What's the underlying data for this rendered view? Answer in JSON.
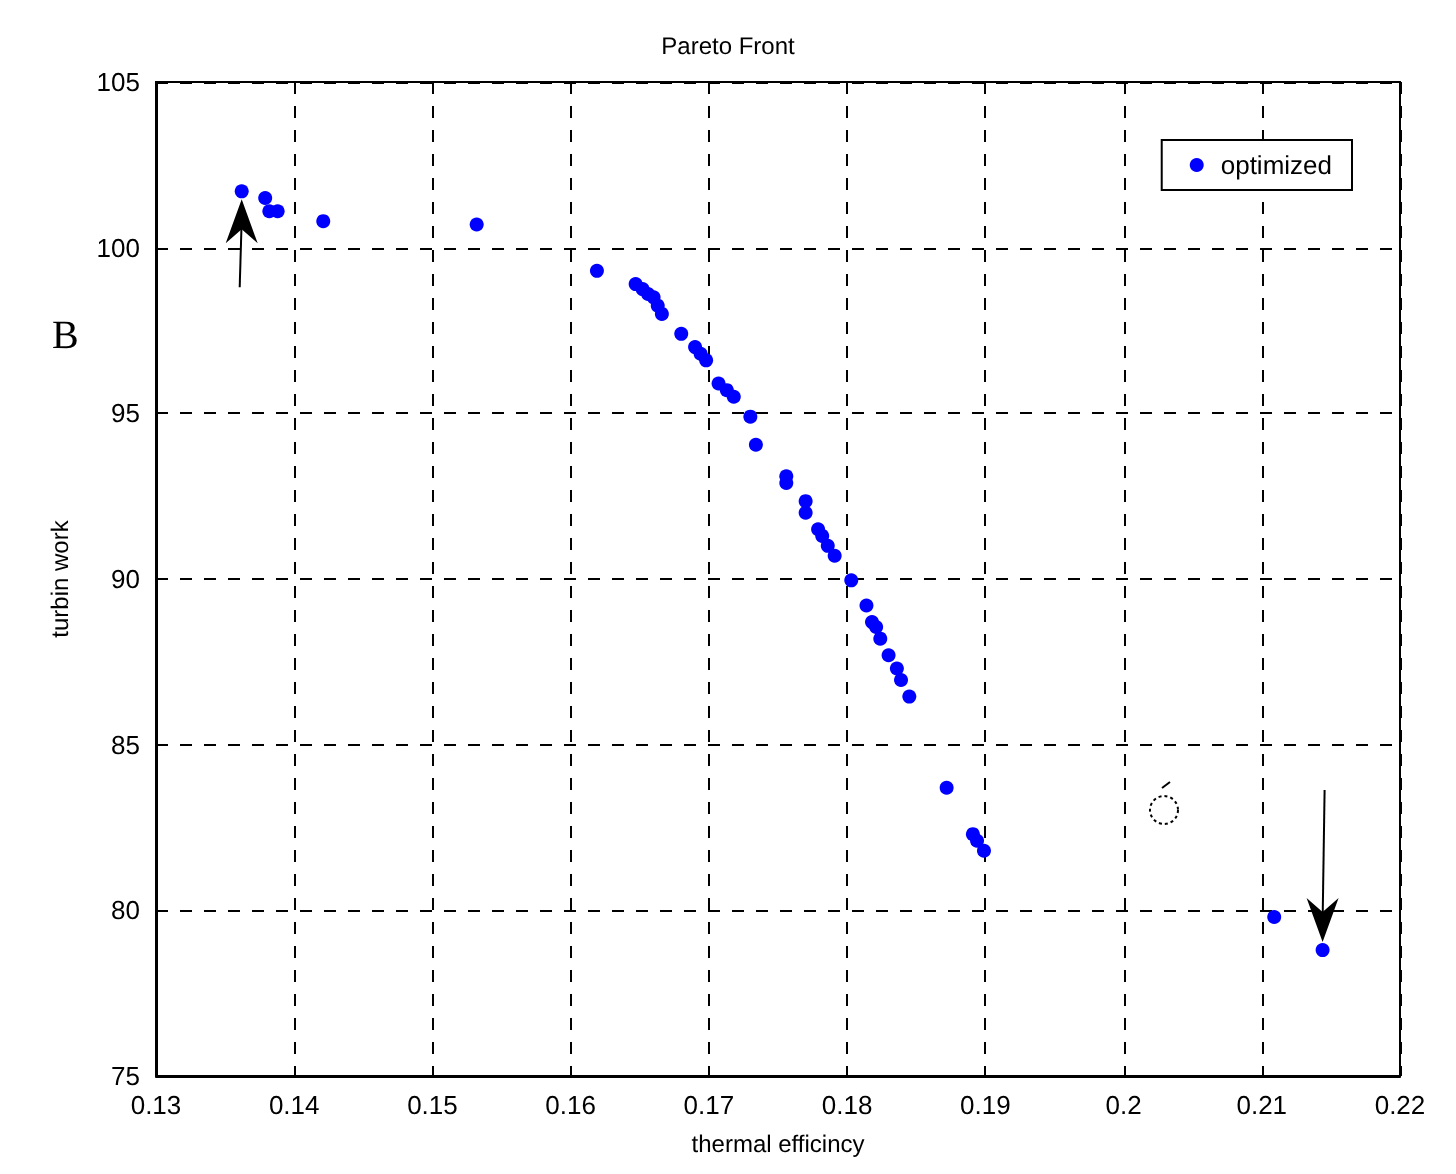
{
  "chart_data": {
    "type": "scatter",
    "title": "Pareto Front",
    "xlabel": "thermal efficincy",
    "ylabel": "turbin work",
    "annotations": [
      "B"
    ],
    "x": [
      0.1362,
      0.1379,
      0.1382,
      0.1388,
      0.1421,
      0.1532,
      0.1619,
      0.1647,
      0.1652,
      0.1656,
      0.166,
      0.1663,
      0.1666,
      0.168,
      0.169,
      0.1694,
      0.1698,
      0.1707,
      0.1713,
      0.1718,
      0.173,
      0.1734,
      0.1756,
      0.1756,
      0.177,
      0.177,
      0.1779,
      0.1782,
      0.1786,
      0.1791,
      0.1803,
      0.1814,
      0.1818,
      0.1821,
      0.1824,
      0.183,
      0.1836,
      0.1839,
      0.1845,
      0.1872,
      0.1891,
      0.1894,
      0.1899,
      0.2109,
      0.2144
    ],
    "series": [
      {
        "name": "optimized",
        "color": "#0000ff",
        "values": [
          101.7,
          101.5,
          101.1,
          101.1,
          100.8,
          100.7,
          99.3,
          98.9,
          98.75,
          98.6,
          98.5,
          98.25,
          98.0,
          97.4,
          97.0,
          96.8,
          96.6,
          95.9,
          95.7,
          95.5,
          94.9,
          94.05,
          93.1,
          92.9,
          92.35,
          92.0,
          91.5,
          91.3,
          91.0,
          90.7,
          89.96,
          89.2,
          88.7,
          88.55,
          88.2,
          87.7,
          87.3,
          86.95,
          86.45,
          83.7,
          82.3,
          82.1,
          81.8,
          79.8,
          78.8
        ]
      }
    ],
    "xlim": [
      0.13,
      0.22
    ],
    "xticks": [
      0.13,
      0.14,
      0.15,
      0.16,
      0.17,
      0.18,
      0.19,
      0.2,
      0.21,
      0.22
    ],
    "ylim": [
      75,
      105
    ],
    "yticks": [
      75,
      80,
      85,
      90,
      95,
      100,
      105
    ],
    "grid": true,
    "legend": "top right",
    "marker": "circle"
  }
}
